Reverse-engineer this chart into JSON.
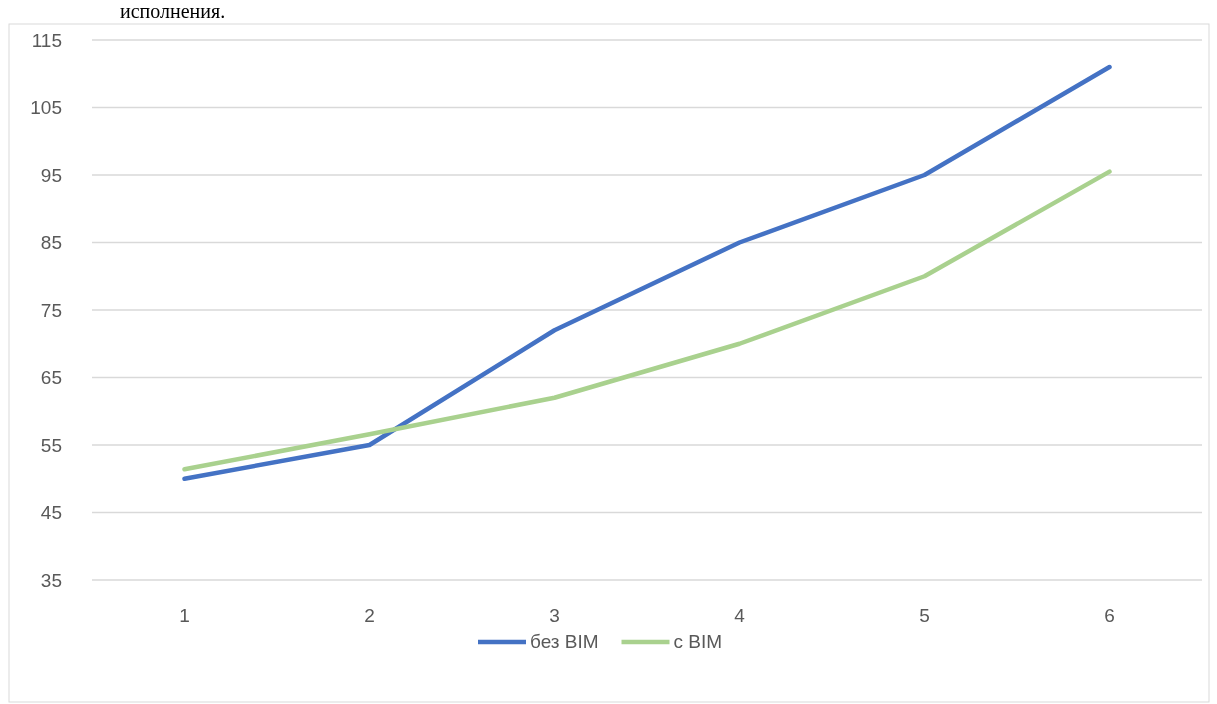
{
  "chart_data": {
    "type": "line",
    "categories": [
      "1",
      "2",
      "3",
      "4",
      "5",
      "6"
    ],
    "series": [
      {
        "name": "без BIM",
        "color": "#4472c4",
        "values": [
          50,
          55,
          72,
          85,
          95,
          111
        ]
      },
      {
        "name": "с BIM",
        "color": "#a9d18e",
        "values": [
          51.4,
          56.6,
          62,
          70,
          80,
          95.5
        ]
      }
    ],
    "ylim": [
      35,
      115
    ],
    "yticks": [
      35,
      45,
      55,
      65,
      75,
      85,
      95,
      105,
      115
    ],
    "grid": "y",
    "legend": "bottom",
    "marker": "none",
    "line_style": "solid",
    "annotations": [
      "исполнения."
    ]
  }
}
